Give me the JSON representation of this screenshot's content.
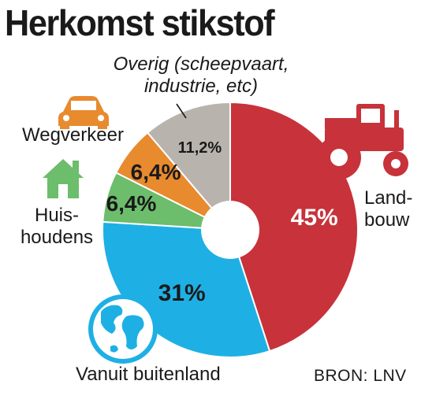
{
  "title": "Herkomst stikstof",
  "source": "BRON: LNV",
  "chart_data": {
    "type": "pie",
    "title": "Herkomst stikstof",
    "slices": [
      {
        "label_lines": [
          "Land-",
          "bouw"
        ],
        "value": 45,
        "value_label": "45%",
        "color": "#c8323a",
        "value_color": "#ffffff",
        "icon": "tractor-icon"
      },
      {
        "label_lines": [
          "Vanuit buitenland"
        ],
        "value": 31,
        "value_label": "31%",
        "color": "#1eb0e4",
        "value_color": "#1a1a1a",
        "icon": "globe-icon"
      },
      {
        "label_lines": [
          "Huis-",
          "houdens"
        ],
        "value": 6.4,
        "value_label": "6,4%",
        "color": "#6cbd6c",
        "value_color": "#1a1a1a",
        "icon": "house-icon"
      },
      {
        "label_lines": [
          "Wegverkeer"
        ],
        "value": 6.4,
        "value_label": "6,4%",
        "color": "#e88a2e",
        "value_color": "#1a1a1a",
        "icon": "car-icon"
      },
      {
        "label_lines": [
          "Overig (scheepvaart,",
          "industrie, etc)"
        ],
        "value": 11.2,
        "value_label": "11,2%",
        "color": "#b9b3ae",
        "value_color": "#1a1a1a",
        "icon": ""
      }
    ]
  }
}
